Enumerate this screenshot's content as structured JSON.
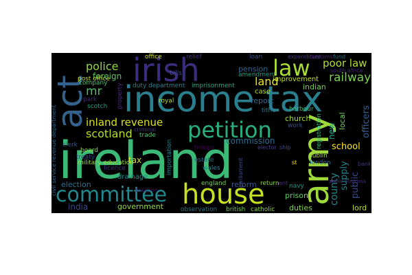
{
  "word_cloud": {
    "background": "#000000",
    "words": [
      {
        "id": "ireland",
        "text": "ireland",
        "color": "#3aba76"
      },
      {
        "id": "income-tax",
        "text": "income tax",
        "color": "#2a7f8e"
      },
      {
        "id": "irish",
        "text": "irish",
        "color": "#3b2d7e"
      },
      {
        "id": "act",
        "text": "act",
        "color": "#33638d"
      },
      {
        "id": "army",
        "text": "army",
        "color": "#9fda3a"
      },
      {
        "id": "house",
        "text": "house",
        "color": "#c7e020"
      },
      {
        "id": "committee",
        "text": "committee",
        "color": "#23888e"
      },
      {
        "id": "petition",
        "text": "petition",
        "color": "#29af7f"
      },
      {
        "id": "law",
        "text": "law",
        "color": "#a8db34"
      },
      {
        "id": "poor-law",
        "text": "poor law",
        "color": "#b5de2b"
      },
      {
        "id": "railway",
        "text": "railway",
        "color": "#7ad151"
      },
      {
        "id": "police",
        "text": "police",
        "color": "#90d743"
      },
      {
        "id": "foreign",
        "text": "foreign",
        "color": "#5cc863"
      },
      {
        "id": "mr",
        "text": "mr",
        "color": "#4ac16d"
      },
      {
        "id": "inland-revenue",
        "text": "inland revenue",
        "color": "#dde318"
      },
      {
        "id": "scotland",
        "text": "scotland",
        "color": "#b8de29"
      },
      {
        "id": "land",
        "text": "land",
        "color": "#f0e51c"
      },
      {
        "id": "pension",
        "text": "pension",
        "color": "#33638d"
      },
      {
        "id": "improvement",
        "text": "improvement",
        "color": "#c2df23"
      },
      {
        "id": "indian",
        "text": "indian",
        "color": "#73d055"
      },
      {
        "id": "report",
        "text": "report",
        "color": "#306a8e"
      },
      {
        "id": "case",
        "text": "case",
        "color": "#b5de2b"
      },
      {
        "id": "commission",
        "text": "commission",
        "color": "#2f6c8e"
      },
      {
        "id": "church",
        "text": "church",
        "color": "#a0da39"
      },
      {
        "id": "school",
        "text": "school",
        "color": "#fde725"
      },
      {
        "id": "new",
        "text": "new",
        "color": "#20a386"
      },
      {
        "id": "county",
        "text": "county",
        "color": "#25848e"
      },
      {
        "id": "supply",
        "text": "supply",
        "color": "#26828e"
      },
      {
        "id": "public",
        "text": "public",
        "color": "#3e4989"
      },
      {
        "id": "officers",
        "text": "officers",
        "color": "#35608d"
      },
      {
        "id": "local",
        "text": "local",
        "color": "#6ece58"
      },
      {
        "id": "tax",
        "text": "tax",
        "color": "#d8e219"
      },
      {
        "id": "election",
        "text": "election",
        "color": "#2c728e"
      },
      {
        "id": "reform",
        "text": "reform",
        "color": "#3a548c"
      },
      {
        "id": "return",
        "text": "return",
        "color": "#8fd744"
      },
      {
        "id": "india",
        "text": "india",
        "color": "#3e4989"
      },
      {
        "id": "government",
        "text": "government",
        "color": "#95d840"
      },
      {
        "id": "duties",
        "text": "duties",
        "color": "#84d44b"
      },
      {
        "id": "prison",
        "text": "prison",
        "color": "#5ec962"
      },
      {
        "id": "lord",
        "text": "lord",
        "color": "#bddf26"
      },
      {
        "id": "navy",
        "text": "navy",
        "color": "#1f988b"
      },
      {
        "id": "london",
        "text": "london",
        "color": "#2c738e"
      },
      {
        "id": "dublin",
        "text": "dublin",
        "color": "#a2da37"
      },
      {
        "id": "england",
        "text": "england",
        "color": "#75d054"
      },
      {
        "id": "wales",
        "text": "wales",
        "color": "#25848e"
      },
      {
        "id": "observation",
        "text": "observation",
        "color": "#2a788e"
      },
      {
        "id": "british",
        "text": "british",
        "color": "#7ad151"
      },
      {
        "id": "catholic",
        "text": "catholic",
        "color": "#90d743"
      },
      {
        "id": "drainage",
        "text": "drainage",
        "color": "#21918c"
      },
      {
        "id": "treaty",
        "text": "treaty",
        "color": "#3f4788"
      },
      {
        "id": "trade",
        "text": "trade",
        "color": "#4ac16d"
      },
      {
        "id": "royal",
        "text": "royal",
        "color": "#addc30"
      },
      {
        "id": "estate",
        "text": "estate",
        "color": "#2e6e8e"
      },
      {
        "id": "importation",
        "text": "importation",
        "color": "#26828e"
      },
      {
        "id": "clerk",
        "text": "clerk",
        "color": "#38588c"
      },
      {
        "id": "board",
        "text": "board",
        "color": "#86d549"
      },
      {
        "id": "military-education",
        "text": "military education",
        "color": "#9bd93c"
      },
      {
        "id": "licence",
        "text": "licence",
        "color": "#46327e"
      },
      {
        "id": "park",
        "text": "park",
        "color": "#482878"
      },
      {
        "id": "scotch",
        "text": "scotch",
        "color": "#1fa088"
      },
      {
        "id": "company",
        "text": "company",
        "color": "#4ac16d"
      },
      {
        "id": "post-office",
        "text": "post office",
        "color": "#c2df23"
      },
      {
        "id": "bills",
        "text": "bills",
        "color": "#3e4989"
      },
      {
        "id": "office",
        "text": "office",
        "color": "#d5e21a"
      },
      {
        "id": "relief",
        "text": "relief",
        "color": "#46327e"
      },
      {
        "id": "loan",
        "text": "loan",
        "color": "#3b528b"
      },
      {
        "id": "amendment",
        "text": "amendment",
        "color": "#1f9e89"
      },
      {
        "id": "duty-department",
        "text": "duty department",
        "color": "#277f8e"
      },
      {
        "id": "imprisonment",
        "text": "imprisonment",
        "color": "#23a983"
      },
      {
        "id": "south-africa",
        "text": "south africa",
        "color": "#482878"
      },
      {
        "id": "harbour",
        "text": "harbour",
        "color": "#3dbc74"
      },
      {
        "id": "registration",
        "text": "registration",
        "color": "#35b779"
      },
      {
        "id": "troops",
        "text": "troops",
        "color": "#440154"
      },
      {
        "id": "property",
        "text": "property",
        "color": "#472c7a"
      },
      {
        "id": "tithe",
        "text": "tithe",
        "color": "#287c8e"
      },
      {
        "id": "work",
        "text": "work",
        "color": "#3b528b"
      },
      {
        "id": "civil-service",
        "text": "civil service revenue department",
        "color": "#31688e"
      },
      {
        "id": "expenditure",
        "text": "expenditure",
        "color": "#46327e"
      },
      {
        "id": "customs",
        "text": "customs",
        "color": "#482878"
      },
      {
        "id": "election2",
        "text": "elector",
        "color": "#414487"
      },
      {
        "id": "criminal",
        "text": "criminal",
        "color": "#443983"
      },
      {
        "id": "parliament",
        "text": "parliament",
        "color": "#3e4989"
      },
      {
        "id": "taxation",
        "text": "taxation",
        "color": "#482173"
      },
      {
        "id": "ship",
        "text": "ship",
        "color": "#3b528b"
      },
      {
        "id": "land2",
        "text": "rent",
        "color": "#46327e"
      },
      {
        "id": "bank",
        "text": "bank",
        "color": "#443983"
      },
      {
        "id": "st",
        "text": "st",
        "color": "#fde725"
      },
      {
        "id": "fund",
        "text": "fund",
        "color": "#2d708e"
      },
      {
        "id": "public-business",
        "text": "public business",
        "color": "#472c7a"
      }
    ]
  }
}
